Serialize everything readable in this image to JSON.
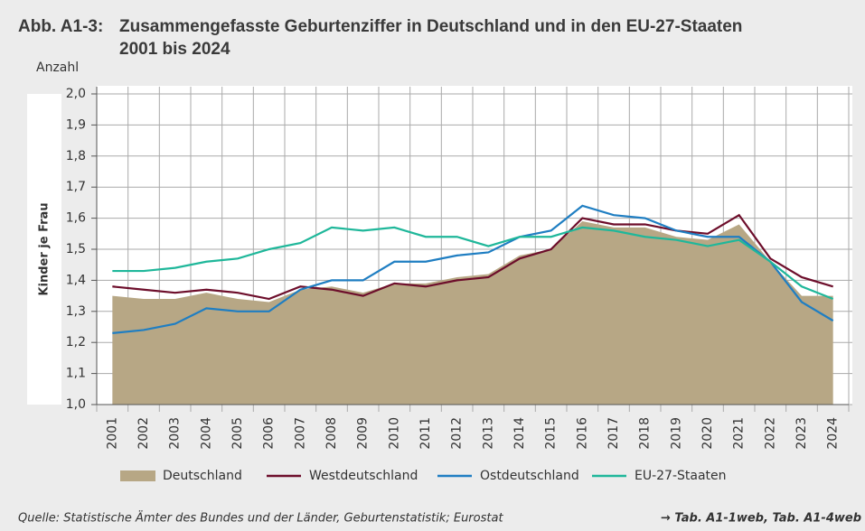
{
  "chart_data": {
    "type": "line",
    "figure_label": "Abb. A1-3:",
    "title": "Zusammengefasste Geburtenziffer in Deutschland und in den EU-27-Staaten",
    "subtitle": "2001 bis 2024",
    "unit_label": "Anzahl",
    "y_label": "Kinder je Frau",
    "categories": [
      "2001",
      "2002",
      "2003",
      "2004",
      "2005",
      "2006",
      "2007",
      "2008",
      "2009",
      "2010",
      "2011",
      "2012",
      "2013",
      "2014",
      "2015",
      "2016",
      "2017",
      "2018",
      "2019",
      "2020",
      "2021",
      "2022",
      "2023",
      "2024"
    ],
    "series": [
      {
        "name": "Deutschland",
        "style": "area",
        "color": "#b7a785",
        "values": [
          1.35,
          1.34,
          1.34,
          1.36,
          1.34,
          1.33,
          1.37,
          1.38,
          1.36,
          1.39,
          1.39,
          1.41,
          1.42,
          1.48,
          1.5,
          1.59,
          1.57,
          1.57,
          1.54,
          1.53,
          1.58,
          1.46,
          1.35,
          1.35
        ]
      },
      {
        "name": "Westdeutschland",
        "style": "line",
        "color": "#6d0e2b",
        "values": [
          1.38,
          1.37,
          1.36,
          1.37,
          1.36,
          1.34,
          1.38,
          1.37,
          1.35,
          1.39,
          1.38,
          1.4,
          1.41,
          1.47,
          1.5,
          1.6,
          1.58,
          1.58,
          1.56,
          1.55,
          1.61,
          1.47,
          1.41,
          1.38
        ]
      },
      {
        "name": "Ostdeutschland",
        "style": "line",
        "color": "#1f7ec2",
        "values": [
          1.23,
          1.24,
          1.26,
          1.31,
          1.3,
          1.3,
          1.37,
          1.4,
          1.4,
          1.46,
          1.46,
          1.48,
          1.49,
          1.54,
          1.56,
          1.64,
          1.61,
          1.6,
          1.56,
          1.54,
          1.54,
          1.46,
          1.33,
          1.27
        ]
      },
      {
        "name": "EU-27-Staaten",
        "style": "line",
        "color": "#1fb79a",
        "values": [
          1.43,
          1.43,
          1.44,
          1.46,
          1.47,
          1.5,
          1.52,
          1.57,
          1.56,
          1.57,
          1.54,
          1.54,
          1.51,
          1.54,
          1.54,
          1.57,
          1.56,
          1.54,
          1.53,
          1.51,
          1.53,
          1.46,
          1.38,
          1.34
        ]
      }
    ],
    "ylim": [
      1.0,
      2.0
    ],
    "yticks": [
      {
        "value": 1.0,
        "label": "1,0"
      },
      {
        "value": 1.1,
        "label": "1,1"
      },
      {
        "value": 1.2,
        "label": "1,2"
      },
      {
        "value": 1.3,
        "label": "1,3"
      },
      {
        "value": 1.4,
        "label": "1,4"
      },
      {
        "value": 1.5,
        "label": "1,5"
      },
      {
        "value": 1.6,
        "label": "1,6"
      },
      {
        "value": 1.7,
        "label": "1,7"
      },
      {
        "value": 1.8,
        "label": "1,8"
      },
      {
        "value": 1.9,
        "label": "1,9"
      },
      {
        "value": 2.0,
        "label": "2,0"
      }
    ],
    "grid": true,
    "legend": "bottom",
    "source": "Quelle: Statistische Ämter des Bundes und der Länder, Geburtenstatistik; Eurostat",
    "reference": "→ Tab. A1-1web, Tab. A1-4web"
  }
}
